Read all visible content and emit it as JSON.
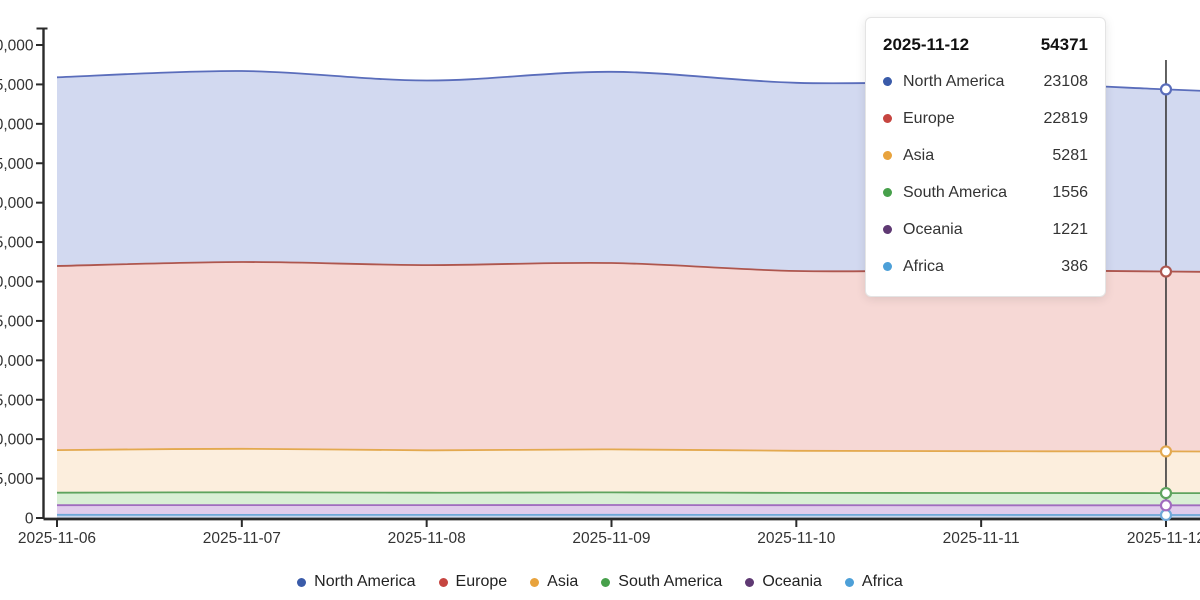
{
  "chart_data": {
    "type": "area",
    "stacked": true,
    "x": [
      "2025-11-06",
      "2025-11-07",
      "2025-11-08",
      "2025-11-09",
      "2025-11-10",
      "2025-11-11",
      "2025-11-12"
    ],
    "series": [
      {
        "name": "North America",
        "values": [
          23940,
          24230,
          23420,
          24260,
          23870,
          23850,
          23108
        ],
        "line": "#5a6dbb",
        "fill": "#d2d9f0",
        "dot": "#3a5ba9"
      },
      {
        "name": "Europe",
        "values": [
          23350,
          23690,
          23500,
          23640,
          22800,
          22980,
          22819
        ],
        "line": "#ae564e",
        "fill": "#f6d8d5",
        "dot": "#c64540"
      },
      {
        "name": "Asia",
        "values": [
          5400,
          5520,
          5380,
          5450,
          5350,
          5300,
          5281
        ],
        "line": "#e3a94f",
        "fill": "#fceedd",
        "dot": "#e8a33d"
      },
      {
        "name": "South America",
        "values": [
          1580,
          1620,
          1570,
          1600,
          1560,
          1555,
          1556
        ],
        "line": "#5ea35e",
        "fill": "#d9efd5",
        "dot": "#47a04b"
      },
      {
        "name": "Oceania",
        "values": [
          1230,
          1245,
          1235,
          1250,
          1228,
          1224,
          1221
        ],
        "line": "#a06cbf",
        "fill": "#e0ccec",
        "dot": "#5f3973"
      },
      {
        "name": "Africa",
        "values": [
          400,
          395,
          398,
          402,
          392,
          390,
          386
        ],
        "line": "#6fa8d8",
        "fill": "#c9d8ee",
        "dot": "#4da0d8"
      }
    ],
    "stack_order_bottom_to_top": [
      "Africa",
      "Oceania",
      "South America",
      "Asia",
      "Europe",
      "North America"
    ],
    "y_axis": {
      "min": 0,
      "max": 60000,
      "step": 5000,
      "zero_label": "0"
    },
    "hover_index": 6,
    "legend_position": "bottom",
    "grid": false,
    "axis_color": "#2b2b2b",
    "tick_label_color": "#333333"
  },
  "tooltip": {
    "date": "2025-11-12",
    "total": "54371",
    "rows": [
      {
        "name": "North America",
        "value": "23108",
        "color": "#3a5ba9"
      },
      {
        "name": "Europe",
        "value": "22819",
        "color": "#c64540"
      },
      {
        "name": "Asia",
        "value": "5281",
        "color": "#e8a33d"
      },
      {
        "name": "South America",
        "value": "1556",
        "color": "#47a04b"
      },
      {
        "name": "Oceania",
        "value": "1221",
        "color": "#5f3973"
      },
      {
        "name": "Africa",
        "value": "386",
        "color": "#4da0d8"
      }
    ]
  }
}
